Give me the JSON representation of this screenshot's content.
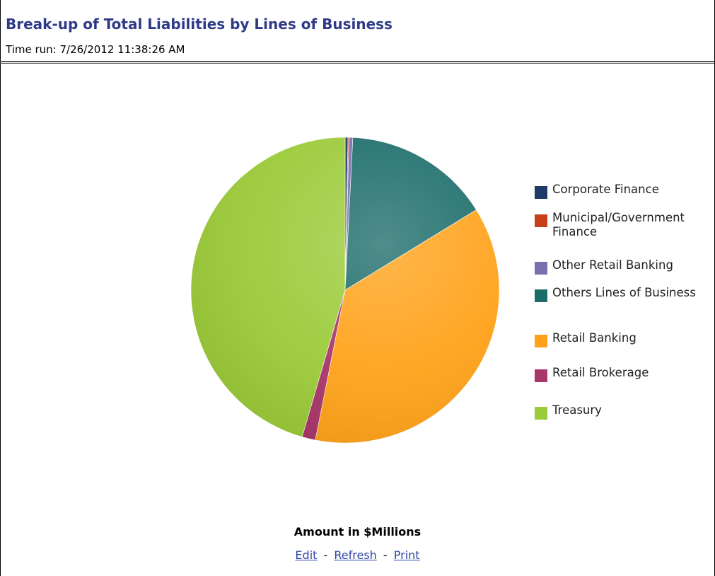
{
  "header": {
    "title": "Break-up of Total Liabilities by Lines of Business",
    "time_run": "Time run: 7/26/2012 11:38:26 AM"
  },
  "chart_data": {
    "type": "pie",
    "title": "Break-up of Total Liabilities by Lines of Business",
    "categories": [
      "Corporate Finance",
      "Municipal/Government Finance",
      "Other Retail Banking",
      "Others Lines of Business",
      "Retail Banking",
      "Retail Brokerage",
      "Treasury"
    ],
    "values": [
      0.3,
      0.1,
      0.4,
      15.4,
      36.9,
      1.4,
      45.5
    ],
    "colors": [
      "#1f3a68",
      "#c8401a",
      "#7a6eac",
      "#1c6d6a",
      "#ffa21a",
      "#a8366a",
      "#9ccb3a"
    ],
    "legend_position": "right",
    "footer": "Amount in $Millions"
  },
  "footer": {
    "amount_label": "Amount in $Millions",
    "links": {
      "edit": "Edit",
      "refresh": "Refresh",
      "print": "Print",
      "separator": "-"
    }
  }
}
